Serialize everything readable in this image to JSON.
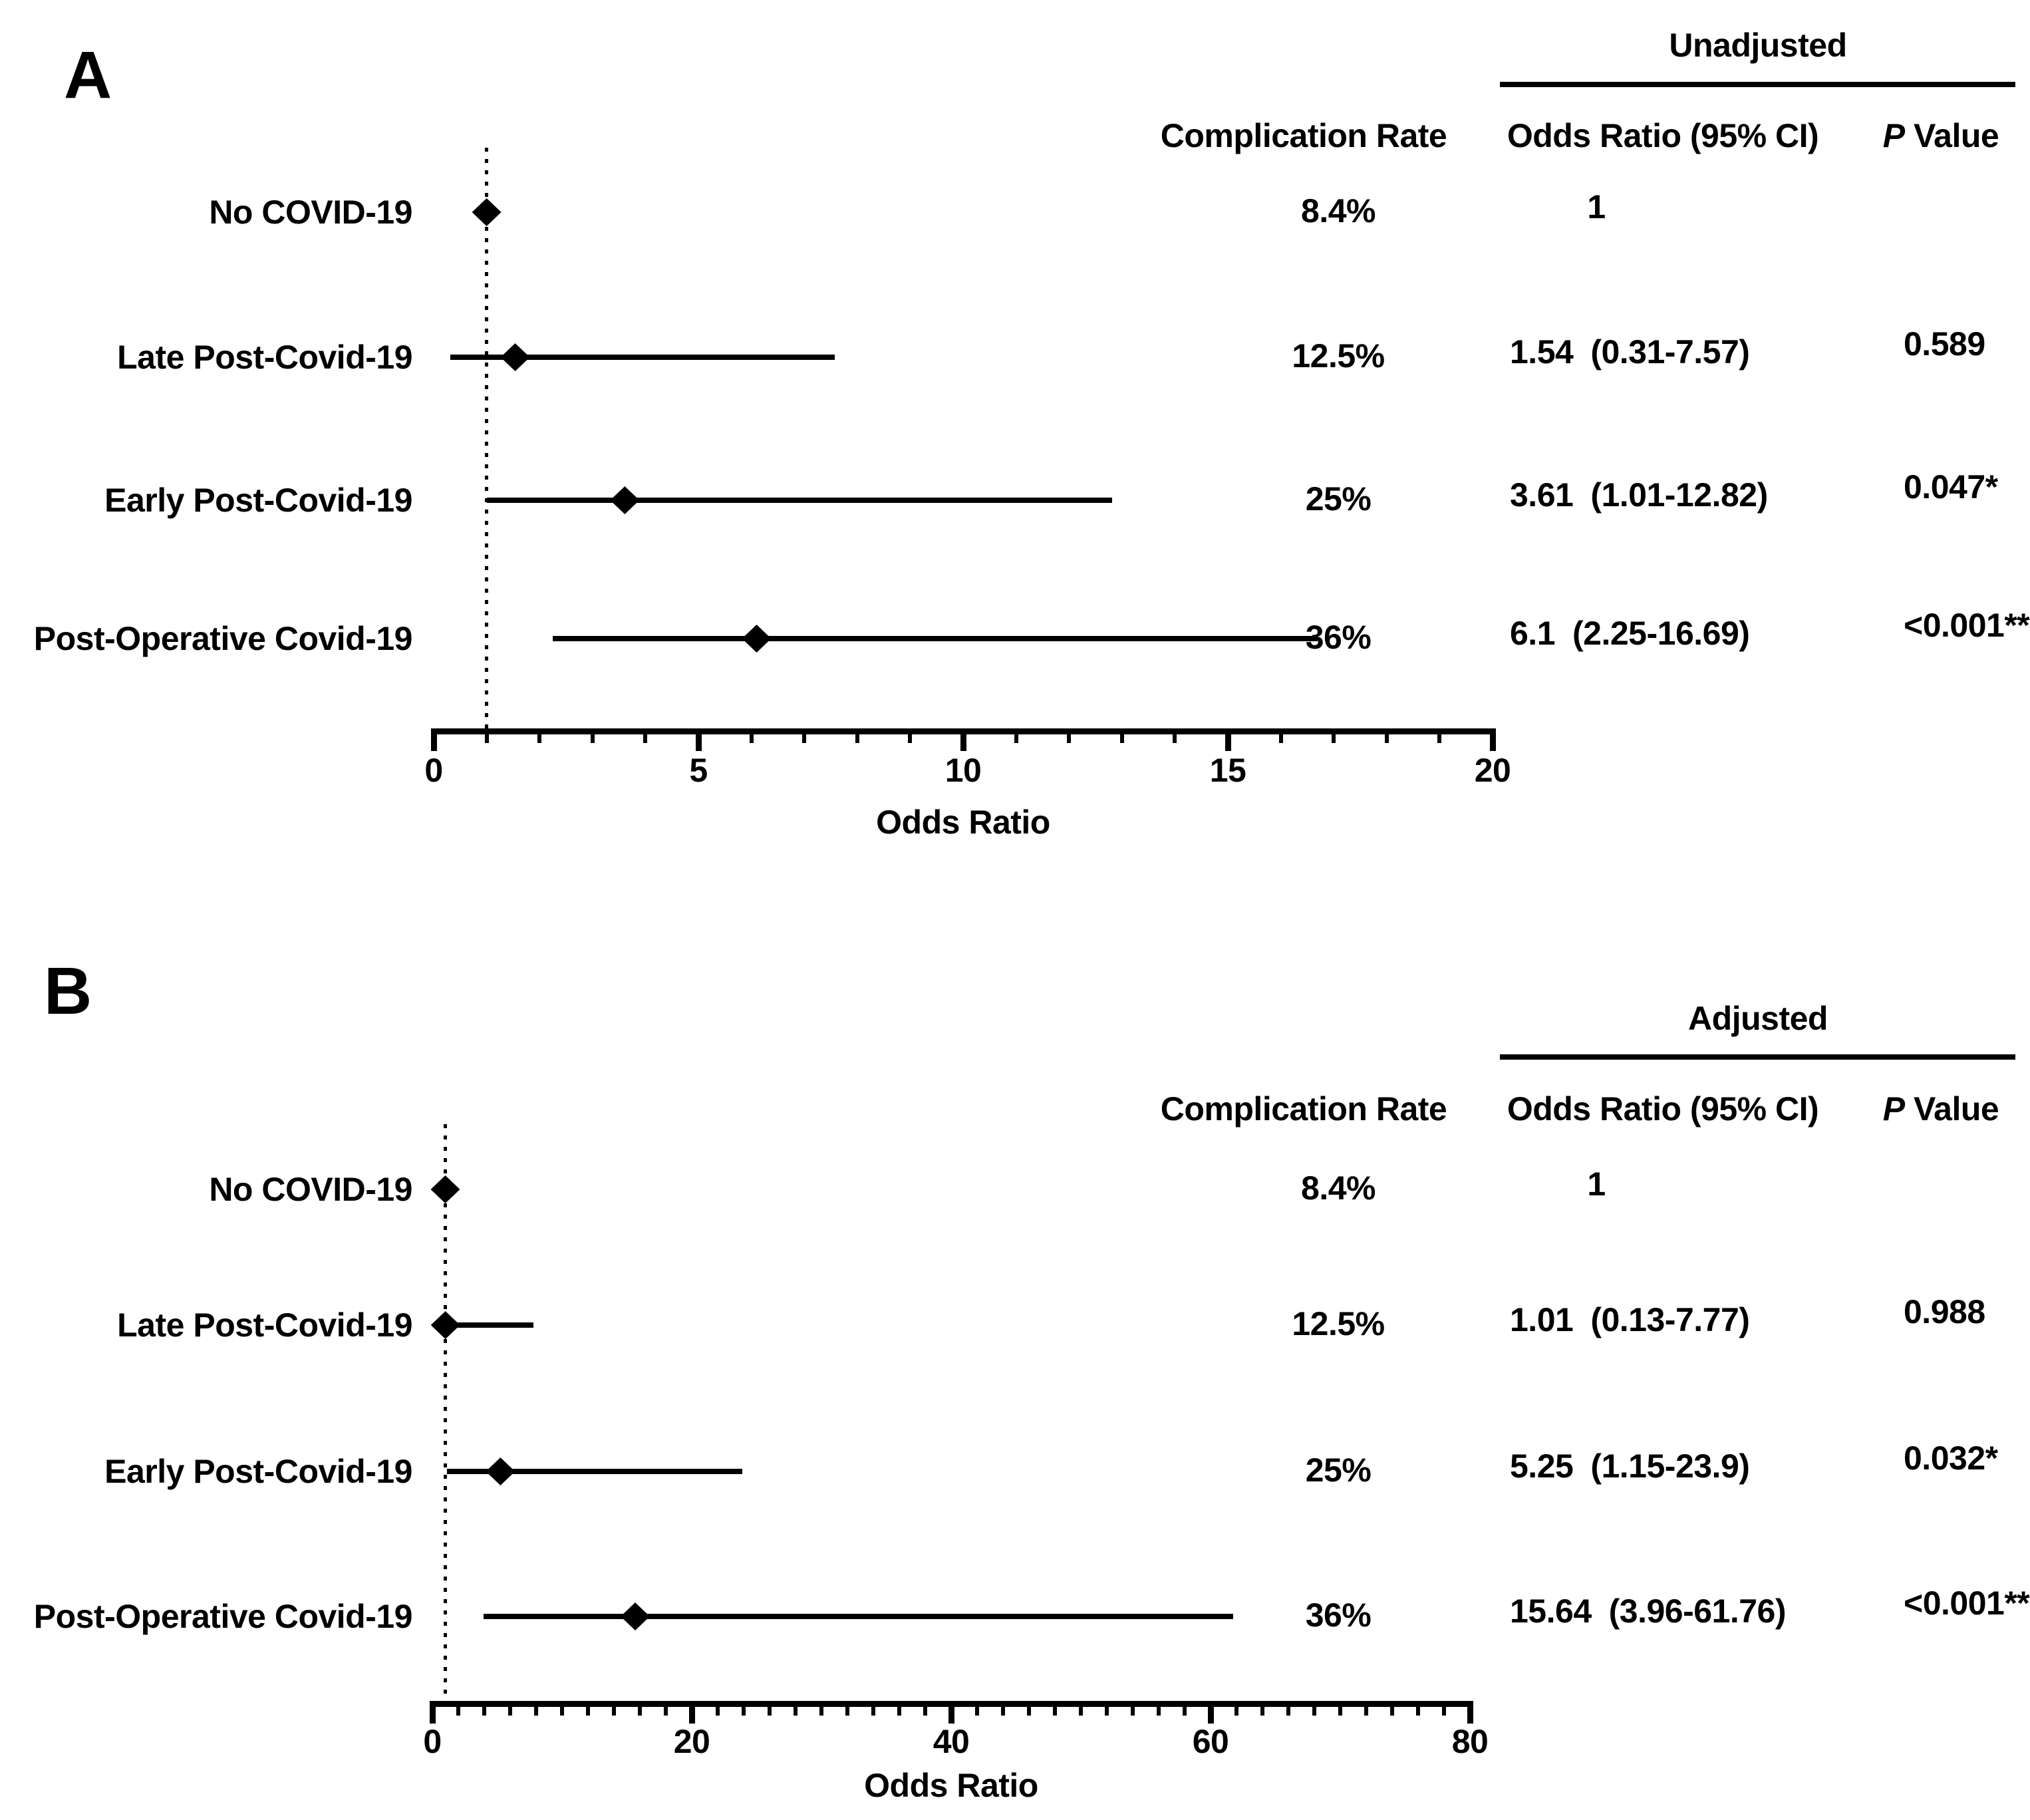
{
  "figure": {
    "background": "#ffffff",
    "ink": "#000000"
  },
  "columns": {
    "rate": "Complication Rate",
    "or": "Odds Ratio (95% CI)",
    "p_italic": "P",
    "p_rest": " Value"
  },
  "chart_data": [
    {
      "type": "forest",
      "panel_label": "A",
      "model": "Unadjusted",
      "xlabel": "Odds Ratio",
      "xlim": [
        0,
        20
      ],
      "major_ticks": [
        0,
        5,
        10,
        15,
        20
      ],
      "minor_tick_step": 1,
      "reference_line_x": 1,
      "grid": false,
      "rows": [
        {
          "label": "No COVID-19",
          "complication_rate": "8.4%",
          "odds_ratio": 1,
          "or_text": "1",
          "ci_text": "",
          "ci_low": null,
          "ci_high": null,
          "p_value": ""
        },
        {
          "label": "Late Post-Covid-19",
          "complication_rate": "12.5%",
          "odds_ratio": 1.54,
          "or_text": "1.54",
          "ci_text": "(0.31-7.57)",
          "ci_low": 0.31,
          "ci_high": 7.57,
          "p_value": "0.589"
        },
        {
          "label": "Early Post-Covid-19",
          "complication_rate": "25%",
          "odds_ratio": 3.61,
          "or_text": "3.61",
          "ci_text": "(1.01-12.82)",
          "ci_low": 1.01,
          "ci_high": 12.82,
          "p_value": "0.047*"
        },
        {
          "label": "Post-Operative Covid-19",
          "complication_rate": "36%",
          "odds_ratio": 6.1,
          "or_text": "6.1",
          "ci_text": "(2.25-16.69)",
          "ci_low": 2.25,
          "ci_high": 16.69,
          "p_value": "<0.001**"
        }
      ]
    },
    {
      "type": "forest",
      "panel_label": "B",
      "model": "Adjusted",
      "xlabel": "Odds Ratio",
      "xlim": [
        0,
        80
      ],
      "major_ticks": [
        0,
        20,
        40,
        60,
        80
      ],
      "minor_tick_step": 2,
      "reference_line_x": 1,
      "grid": false,
      "rows": [
        {
          "label": "No COVID-19",
          "complication_rate": "8.4%",
          "odds_ratio": 1,
          "or_text": "1",
          "ci_text": "",
          "ci_low": null,
          "ci_high": null,
          "p_value": ""
        },
        {
          "label": "Late Post-Covid-19",
          "complication_rate": "12.5%",
          "odds_ratio": 1.01,
          "or_text": "1.01",
          "ci_text": "(0.13-7.77)",
          "ci_low": 0.13,
          "ci_high": 7.77,
          "p_value": "0.988"
        },
        {
          "label": "Early Post-Covid-19",
          "complication_rate": "25%",
          "odds_ratio": 5.25,
          "or_text": "5.25",
          "ci_text": "(1.15-23.9)",
          "ci_low": 1.15,
          "ci_high": 23.9,
          "p_value": "0.032*"
        },
        {
          "label": "Post-Operative Covid-19",
          "complication_rate": "36%",
          "odds_ratio": 15.64,
          "or_text": "15.64",
          "ci_text": "(3.96-61.76)",
          "ci_low": 3.96,
          "ci_high": 61.76,
          "p_value": "<0.001**"
        }
      ]
    }
  ]
}
